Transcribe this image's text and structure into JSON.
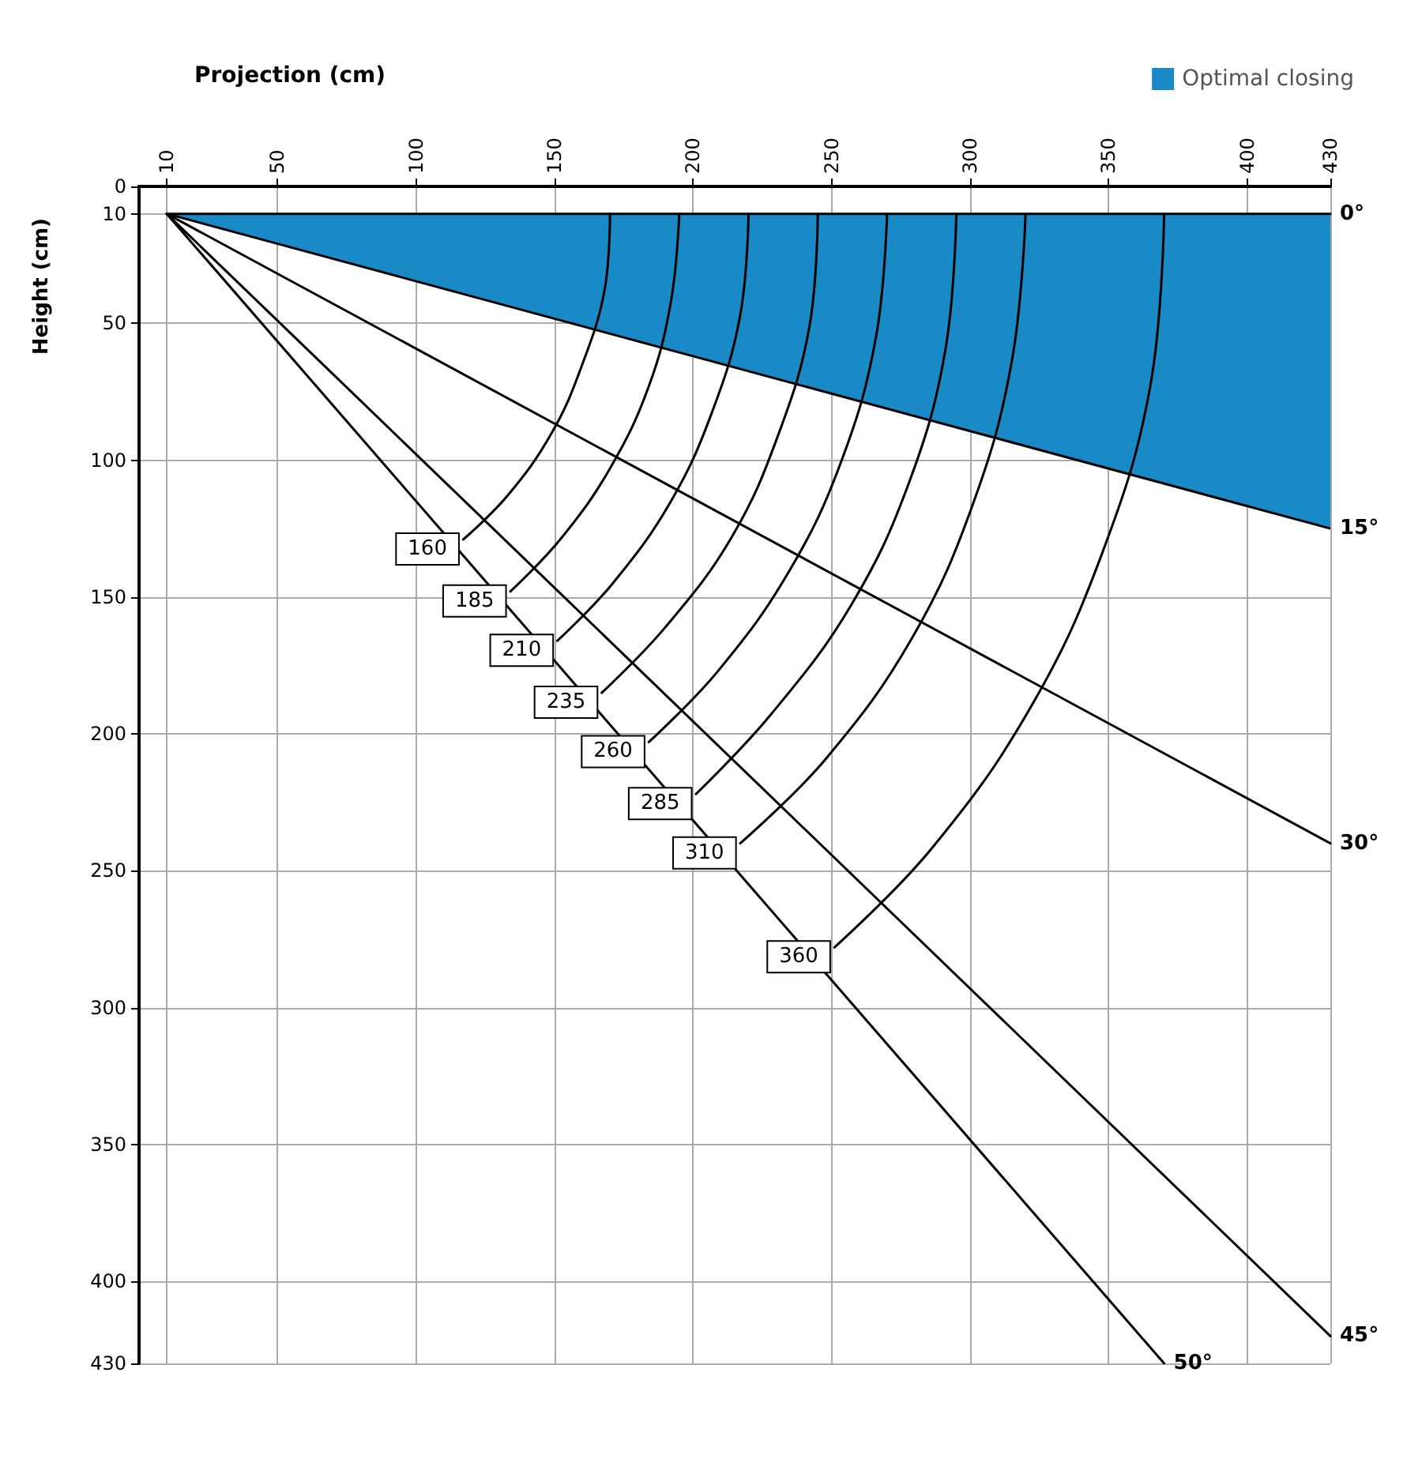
{
  "chart_data": {
    "type": "line",
    "xlabel": "Projection (cm)",
    "ylabel": "Height (cm)",
    "xlim": [
      0,
      430
    ],
    "xticks": [
      10,
      50,
      100,
      150,
      200,
      250,
      300,
      350,
      400,
      430
    ],
    "ylim": [
      430,
      0
    ],
    "yticks": [
      0,
      10,
      50,
      100,
      150,
      200,
      250,
      300,
      350,
      400,
      430
    ],
    "annotations": [
      {
        "text": "15°",
        "x": 430,
        "y": 125
      }
    ],
    "grid": true,
    "legend": "top right",
    "marker": "none",
    "line_style": "solid",
    "series": [
      {
        "name": "Optimal closing",
        "type": "area",
        "color": "#1a8ac6",
        "x": [
          10,
          430
        ],
        "values": [
          10,
          125
        ]
      },
      {
        "name": "0°",
        "color": "#000000",
        "x": [
          10,
          430
        ],
        "values": [
          10,
          10
        ]
      },
      {
        "name": "30°",
        "color": "#000000",
        "x": [
          10,
          430
        ],
        "values": [
          10,
          240
        ]
      },
      {
        "name": "45°",
        "color": "#000000",
        "x": [
          10,
          430
        ],
        "values": [
          10,
          420
        ]
      },
      {
        "name": "50°",
        "color": "#000000",
        "x": [
          10,
          370
        ],
        "values": [
          10,
          430
        ]
      },
      {
        "name": "160",
        "color": "#000000",
        "x": [
          170,
          168,
          160,
          149,
          133,
          117
        ],
        "values": [
          10,
          38,
          65,
          90,
          113,
          129
        ]
      },
      {
        "name": "185",
        "color": "#000000",
        "x": [
          195,
          192,
          184,
          170,
          152,
          134
        ],
        "values": [
          10,
          42,
          73,
          103,
          129,
          148
        ]
      },
      {
        "name": "210",
        "color": "#000000",
        "x": [
          220,
          217,
          207,
          192,
          171,
          151
        ],
        "values": [
          10,
          47,
          82,
          115,
          145,
          166
        ]
      },
      {
        "name": "235",
        "color": "#000000",
        "x": [
          245,
          242,
          231,
          214,
          190,
          167
        ],
        "values": [
          10,
          51,
          90,
          128,
          161,
          185
        ]
      },
      {
        "name": "260",
        "color": "#000000",
        "x": [
          270,
          266,
          254,
          235,
          209,
          184
        ],
        "values": [
          10,
          55,
          99,
          140,
          177,
          203
        ]
      },
      {
        "name": "285",
        "color": "#000000",
        "x": [
          295,
          291,
          278,
          257,
          228,
          201
        ],
        "values": [
          10,
          60,
          108,
          153,
          193,
          222
        ]
      },
      {
        "name": "310",
        "color": "#000000",
        "x": [
          320,
          315,
          301,
          279,
          248,
          217
        ],
        "values": [
          10,
          64,
          116,
          165,
          209,
          240
        ]
      },
      {
        "name": "360",
        "color": "#000000",
        "x": [
          370,
          365,
          348,
          322,
          286,
          251
        ],
        "values": [
          10,
          73,
          133,
          190,
          242,
          278
        ]
      }
    ]
  }
}
